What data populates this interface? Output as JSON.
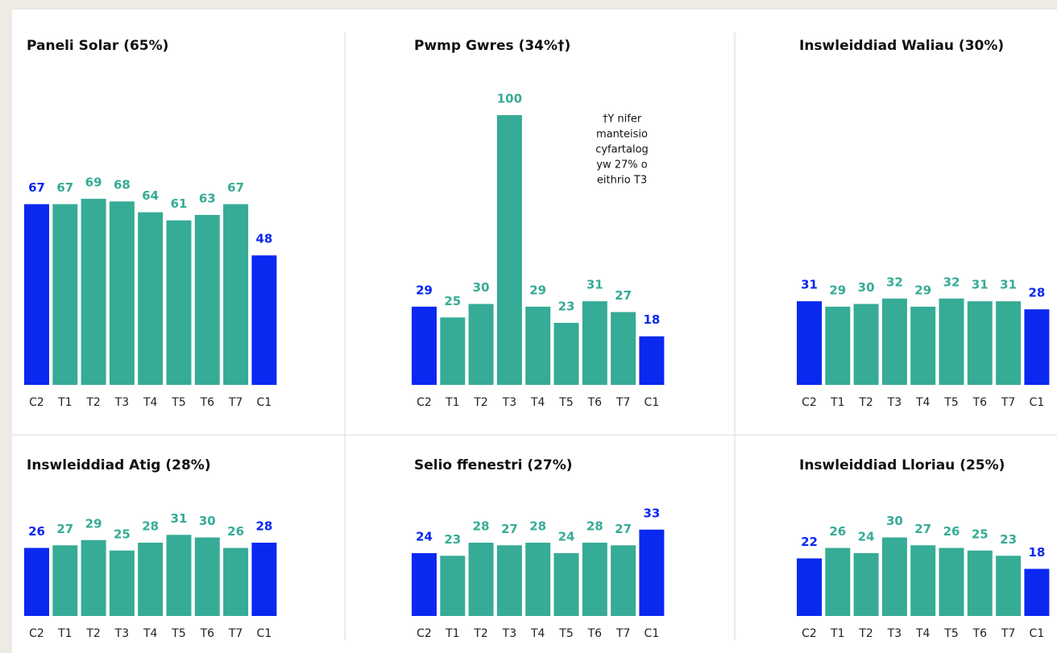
{
  "chart_data": [
    {
      "type": "bar",
      "title": "Paneli Solar (65%)",
      "categories": [
        "C2",
        "T1",
        "T2",
        "T3",
        "T4",
        "T5",
        "T6",
        "T7",
        "C1"
      ],
      "values": [
        67,
        67,
        69,
        68,
        64,
        61,
        63,
        67,
        48
      ],
      "colors": [
        "#0a28f0",
        "#36ab96",
        "#36ab96",
        "#36ab96",
        "#36ab96",
        "#36ab96",
        "#36ab96",
        "#36ab96",
        "#0a28f0"
      ],
      "ylim": [
        0,
        100
      ]
    },
    {
      "type": "bar",
      "title": "Pwmp Gwres (34%†)",
      "categories": [
        "C2",
        "T1",
        "T2",
        "T3",
        "T4",
        "T5",
        "T6",
        "T7",
        "C1"
      ],
      "values": [
        29,
        25,
        30,
        100,
        29,
        23,
        31,
        27,
        18
      ],
      "colors": [
        "#0a28f0",
        "#36ab96",
        "#36ab96",
        "#36ab96",
        "#36ab96",
        "#36ab96",
        "#36ab96",
        "#36ab96",
        "#0a28f0"
      ],
      "ylim": [
        0,
        100
      ],
      "annotation": [
        "†Y nifer",
        "manteisio",
        "cyfartalog",
        "yw 27% o",
        "eithrio T3"
      ]
    },
    {
      "type": "bar",
      "title": "Inswleiddiad Waliau (30%)",
      "categories": [
        "C2",
        "T1",
        "T2",
        "T3",
        "T4",
        "T5",
        "T6",
        "T7",
        "C1"
      ],
      "values": [
        31,
        29,
        30,
        32,
        29,
        32,
        31,
        31,
        28
      ],
      "colors": [
        "#0a28f0",
        "#36ab96",
        "#36ab96",
        "#36ab96",
        "#36ab96",
        "#36ab96",
        "#36ab96",
        "#36ab96",
        "#0a28f0"
      ],
      "ylim": [
        0,
        100
      ]
    },
    {
      "type": "bar",
      "title": "Inswleiddiad Atig (28%)",
      "categories": [
        "C2",
        "T1",
        "T2",
        "T3",
        "T4",
        "T5",
        "T6",
        "T7",
        "C1"
      ],
      "values": [
        26,
        27,
        29,
        25,
        28,
        31,
        30,
        26,
        28
      ],
      "colors": [
        "#0a28f0",
        "#36ab96",
        "#36ab96",
        "#36ab96",
        "#36ab96",
        "#36ab96",
        "#36ab96",
        "#36ab96",
        "#0a28f0"
      ],
      "ylim": [
        0,
        100
      ]
    },
    {
      "type": "bar",
      "title": "Selio ffenestri (27%)",
      "categories": [
        "C2",
        "T1",
        "T2",
        "T3",
        "T4",
        "T5",
        "T6",
        "T7",
        "C1"
      ],
      "values": [
        24,
        23,
        28,
        27,
        28,
        24,
        28,
        27,
        33
      ],
      "colors": [
        "#0a28f0",
        "#36ab96",
        "#36ab96",
        "#36ab96",
        "#36ab96",
        "#36ab96",
        "#36ab96",
        "#36ab96",
        "#0a28f0"
      ],
      "ylim": [
        0,
        100
      ]
    },
    {
      "type": "bar",
      "title": "Inswleiddiad Lloriau (25%)",
      "categories": [
        "C2",
        "T1",
        "T2",
        "T3",
        "T4",
        "T5",
        "T6",
        "T7",
        "C1"
      ],
      "values": [
        22,
        26,
        24,
        30,
        27,
        26,
        25,
        23,
        18
      ],
      "colors": [
        "#0a28f0",
        "#36ab96",
        "#36ab96",
        "#36ab96",
        "#36ab96",
        "#36ab96",
        "#36ab96",
        "#36ab96",
        "#0a28f0"
      ],
      "ylim": [
        0,
        100
      ]
    }
  ]
}
